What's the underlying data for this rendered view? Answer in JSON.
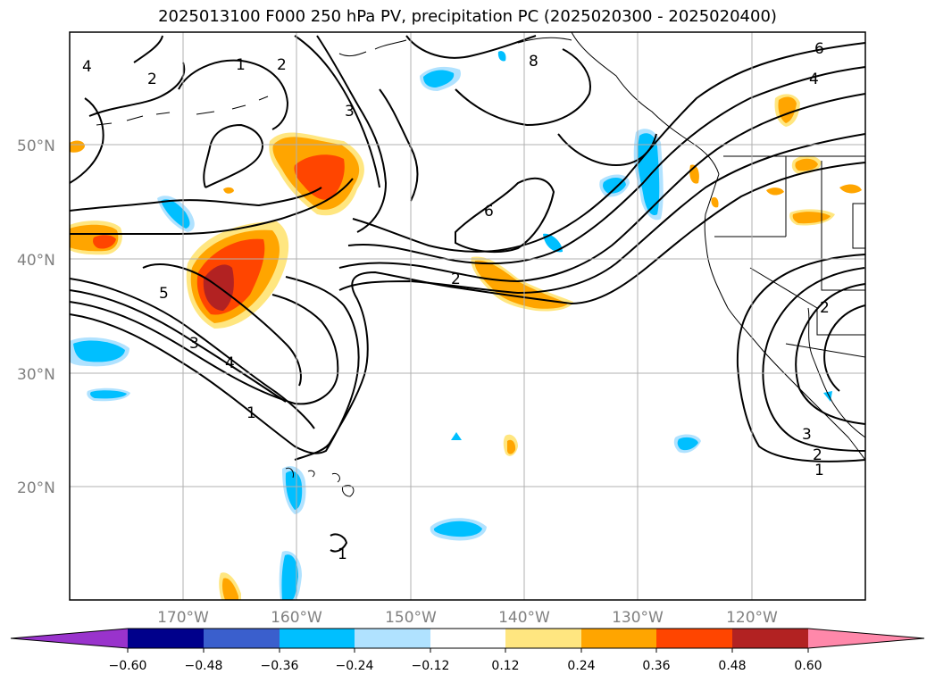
{
  "title": "2025013100 F000 250 hPa PV, precipitation PC (2025020300 - 2025020400)",
  "map": {
    "lat_labels": [
      "50°N",
      "40°N",
      "30°N",
      "20°N"
    ],
    "lon_labels": [
      "170°W",
      "160°W",
      "150°W",
      "140°W",
      "130°W",
      "120°W"
    ],
    "grid": true,
    "contour_labels": [
      "2",
      "1",
      "2",
      "3",
      "8",
      "6",
      "4",
      "6",
      "2",
      "5",
      "3",
      "4",
      "1",
      "2",
      "3",
      "2",
      "1",
      "1",
      "4"
    ]
  },
  "colorbar": {
    "ticks": [
      "−0.60",
      "−0.48",
      "−0.36",
      "−0.24",
      "−0.12",
      "0.12",
      "0.24",
      "0.36",
      "0.48",
      "0.60"
    ],
    "colors": [
      "#9933cc",
      "#00008b",
      "#3a5fcd",
      "#00bfff",
      "#b0e2ff",
      "#ffffff",
      "#ffe680",
      "#ffa500",
      "#ff4500",
      "#b22222",
      "#ff88aa"
    ],
    "extend": "both"
  }
}
